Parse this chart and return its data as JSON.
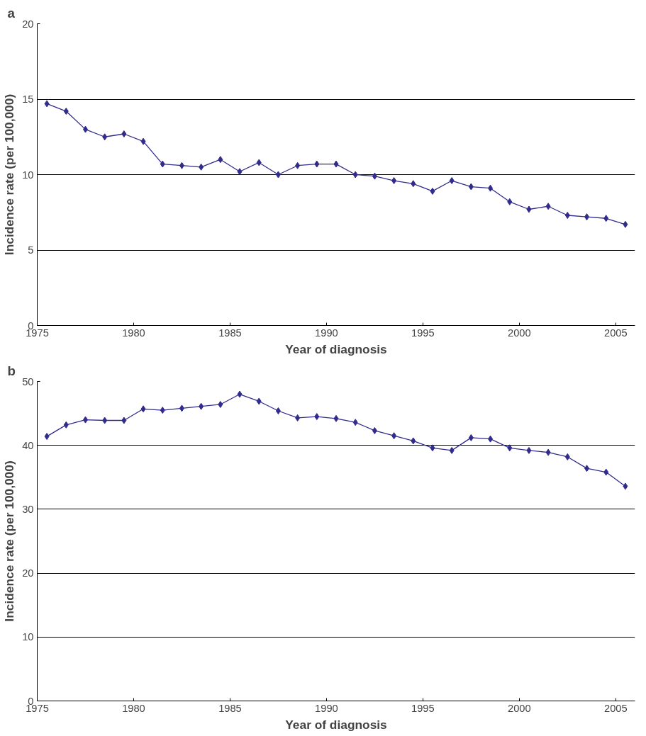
{
  "chart_data": [
    {
      "type": "line",
      "annotations": [
        "a"
      ],
      "xlabel": "Year of diagnosis",
      "ylabel": "Incidence rate (per 100,000)",
      "x": [
        1975.5,
        1976.5,
        1977.5,
        1978.5,
        1979.5,
        1980.5,
        1981.5,
        1982.5,
        1983.5,
        1984.5,
        1985.5,
        1986.5,
        1987.5,
        1988.5,
        1989.5,
        1990.5,
        1991.5,
        1992.5,
        1993.5,
        1994.5,
        1995.5,
        1996.5,
        1997.5,
        1998.5,
        1999.5,
        2000.5,
        2001.5,
        2002.5,
        2003.5,
        2004.5,
        2005.5
      ],
      "series": [
        {
          "color": "#312b8c",
          "values": [
            14.7,
            14.2,
            13.0,
            12.5,
            12.7,
            12.2,
            10.7,
            10.6,
            10.5,
            11.0,
            10.2,
            10.8,
            10.0,
            10.6,
            10.7,
            10.7,
            10.0,
            9.9,
            9.6,
            9.4,
            8.9,
            9.6,
            9.2,
            9.1,
            8.2,
            7.7,
            7.9,
            7.3,
            7.2,
            7.1,
            6.7
          ]
        }
      ],
      "xlim": [
        1975,
        2006
      ],
      "xticks": [
        1975,
        1980,
        1985,
        1990,
        1995,
        2000,
        2005
      ],
      "ylim": [
        0,
        20
      ],
      "yticks": [
        0,
        5,
        10,
        15,
        20
      ],
      "grid": "y",
      "marker": "diamond",
      "line_style": "solid"
    },
    {
      "type": "line",
      "annotations": [
        "b"
      ],
      "xlabel": "Year of diagnosis",
      "ylabel": "Incidence rate (per 100,000)",
      "x": [
        1975.5,
        1976.5,
        1977.5,
        1978.5,
        1979.5,
        1980.5,
        1981.5,
        1982.5,
        1983.5,
        1984.5,
        1985.5,
        1986.5,
        1987.5,
        1988.5,
        1989.5,
        1990.5,
        1991.5,
        1992.5,
        1993.5,
        1994.5,
        1995.5,
        1996.5,
        1997.5,
        1998.5,
        1999.5,
        2000.5,
        2001.5,
        2002.5,
        2003.5,
        2004.5,
        2005.5
      ],
      "series": [
        {
          "color": "#312b8c",
          "values": [
            41.4,
            43.2,
            44.0,
            43.9,
            43.9,
            45.7,
            45.5,
            45.8,
            46.1,
            46.4,
            48.0,
            46.9,
            45.4,
            44.3,
            44.5,
            44.2,
            43.6,
            42.3,
            41.5,
            40.7,
            39.6,
            39.2,
            41.2,
            41.0,
            39.6,
            39.2,
            38.9,
            38.2,
            36.4,
            35.8,
            33.6
          ]
        }
      ],
      "xlim": [
        1975,
        2006
      ],
      "xticks": [
        1975,
        1980,
        1985,
        1990,
        1995,
        2000,
        2005
      ],
      "ylim": [
        0,
        50
      ],
      "yticks": [
        0,
        10,
        20,
        30,
        40,
        50
      ],
      "grid": "y",
      "marker": "diamond",
      "line_style": "solid"
    }
  ]
}
